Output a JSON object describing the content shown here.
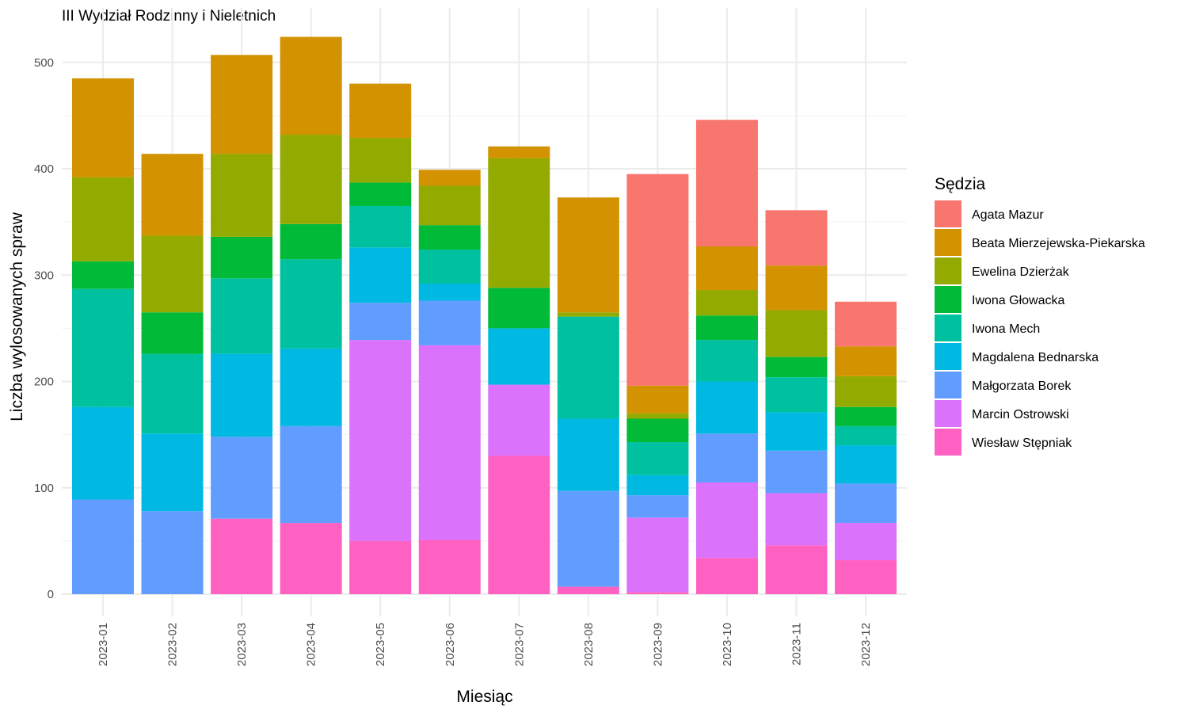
{
  "chart_data": {
    "type": "bar",
    "stacked": true,
    "title": "III Wydział Rodzinny i Nieletnich",
    "xlabel": "Miesiąc",
    "ylabel": "Liczba wylosowanych spraw",
    "ylim": [
      0,
      530
    ],
    "yticks": [
      0,
      100,
      200,
      300,
      400,
      500
    ],
    "grid": true,
    "legend": {
      "title": "Sędzia",
      "position": "right"
    },
    "categories": [
      "2023-01",
      "2023-02",
      "2023-03",
      "2023-04",
      "2023-05",
      "2023-06",
      "2023-07",
      "2023-08",
      "2023-09",
      "2023-10",
      "2023-11",
      "2023-12"
    ],
    "series": [
      {
        "name": "Wiesław Stępniak",
        "color": "#FF61C3",
        "values": [
          0,
          0,
          71,
          67,
          50,
          51,
          130,
          7,
          2,
          34,
          46,
          32
        ]
      },
      {
        "name": "Marcin Ostrowski",
        "color": "#DB72FB",
        "values": [
          0,
          0,
          0,
          0,
          189,
          183,
          67,
          0,
          70,
          71,
          49,
          35
        ]
      },
      {
        "name": "Małgorzata Borek",
        "color": "#619CFF",
        "values": [
          89,
          78,
          77,
          91,
          35,
          42,
          0,
          90,
          21,
          46,
          40,
          37
        ]
      },
      {
        "name": "Magdalena Bednarska",
        "color": "#00B9E3",
        "values": [
          87,
          73,
          78,
          73,
          52,
          16,
          53,
          68,
          19,
          49,
          36,
          36
        ]
      },
      {
        "name": "Iwona Mech",
        "color": "#00C19F",
        "values": [
          111,
          75,
          71,
          84,
          39,
          32,
          0,
          96,
          31,
          39,
          33,
          18
        ]
      },
      {
        "name": "Iwona Głowacka",
        "color": "#00BA38",
        "values": [
          26,
          39,
          39,
          33,
          22,
          23,
          38,
          0,
          22,
          23,
          19,
          18
        ]
      },
      {
        "name": "Ewelina Dzierżak",
        "color": "#93AA00",
        "values": [
          79,
          72,
          78,
          84,
          42,
          37,
          122,
          4,
          5,
          24,
          44,
          29
        ]
      },
      {
        "name": "Beata Mierzejewska-Piekarska",
        "color": "#D39200",
        "values": [
          93,
          77,
          93,
          92,
          51,
          15,
          11,
          108,
          26,
          41,
          42,
          28
        ]
      },
      {
        "name": "Agata Mazur",
        "color": "#F8766D",
        "values": [
          0,
          0,
          0,
          0,
          0,
          0,
          0,
          0,
          199,
          119,
          52,
          42
        ]
      }
    ]
  }
}
